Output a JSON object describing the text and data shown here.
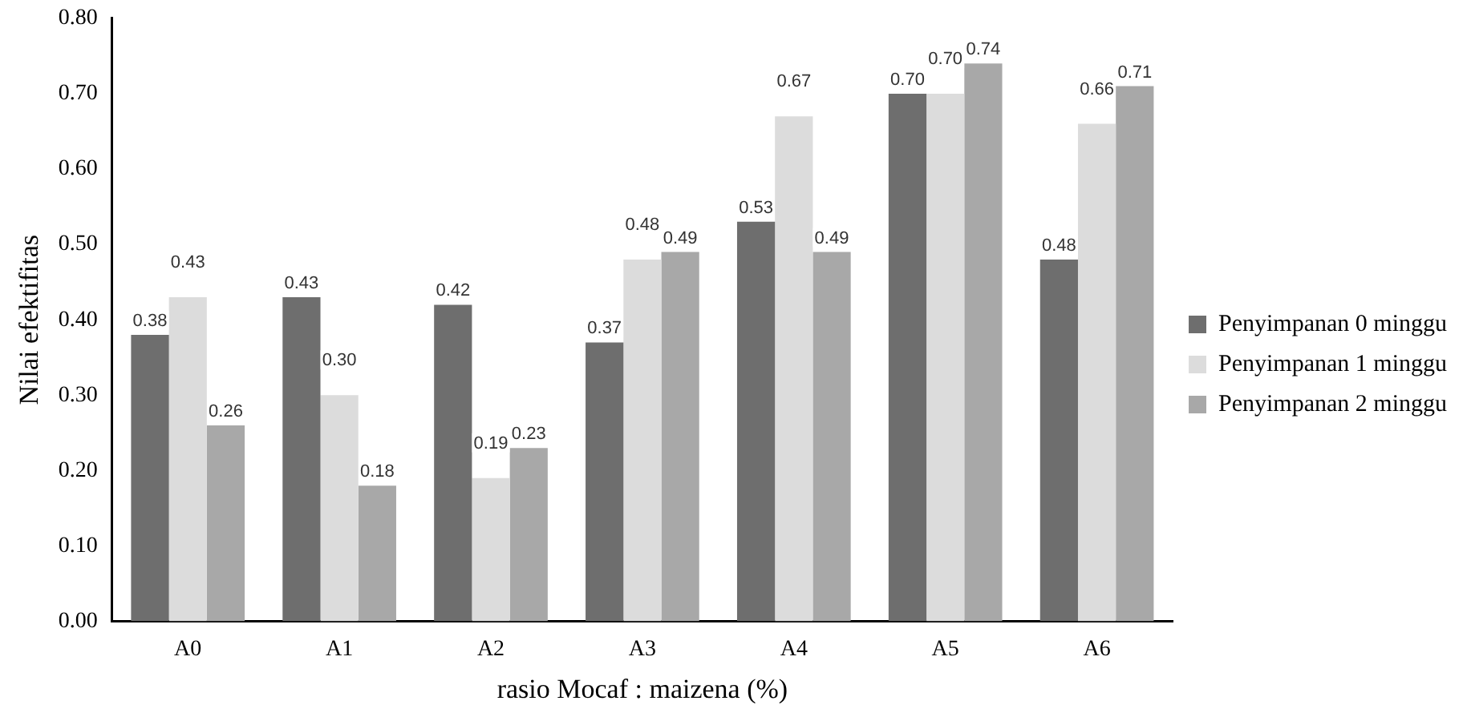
{
  "chart_data": {
    "type": "bar",
    "xlabel": "rasio Mocaf : maizena (%)",
    "ylabel": "Nilai efektifitas",
    "categories": [
      "A0",
      "A1",
      "A2",
      "A3",
      "A4",
      "A5",
      "A6"
    ],
    "series": [
      {
        "name": "Penyimpanan 0 minggu",
        "color": "#6e6e6e",
        "values": [
          0.38,
          0.43,
          0.42,
          0.37,
          0.53,
          0.7,
          0.48
        ],
        "value_labels": [
          "0.38",
          "0.43",
          "0.42",
          "0.37",
          "0.53",
          "0.70",
          "0.48"
        ]
      },
      {
        "name": "Penyimpanan 1 minggu",
        "color": "#dcdcdc",
        "values": [
          0.43,
          0.3,
          0.19,
          0.48,
          0.67,
          0.7,
          0.66
        ],
        "value_labels": [
          "0.43",
          "0.30",
          "0.19",
          "0.48",
          "0.67",
          "0.70",
          "0.66"
        ]
      },
      {
        "name": "Penyimpanan 2 minggu",
        "color": "#a8a8a8",
        "values": [
          0.26,
          0.18,
          0.23,
          0.49,
          0.49,
          0.74,
          0.71
        ],
        "value_labels": [
          "0.26",
          "0.18",
          "0.23",
          "0.49",
          "0.49",
          "0.74",
          "0.71"
        ]
      }
    ],
    "ylim": [
      0,
      0.8
    ],
    "yticks": [
      {
        "value": 0,
        "label": "0.00"
      },
      {
        "value": 0.1,
        "label": "0.10"
      },
      {
        "value": 0.2,
        "label": "0.20"
      },
      {
        "value": 0.3,
        "label": "0.30"
      },
      {
        "value": 0.4,
        "label": "0.40"
      },
      {
        "value": 0.5,
        "label": "0.50"
      },
      {
        "value": 0.6,
        "label": "0.60"
      },
      {
        "value": 0.7,
        "label": "0.70"
      },
      {
        "value": 0.8,
        "label": "0.80"
      }
    ],
    "grid": false,
    "legend": "right"
  }
}
